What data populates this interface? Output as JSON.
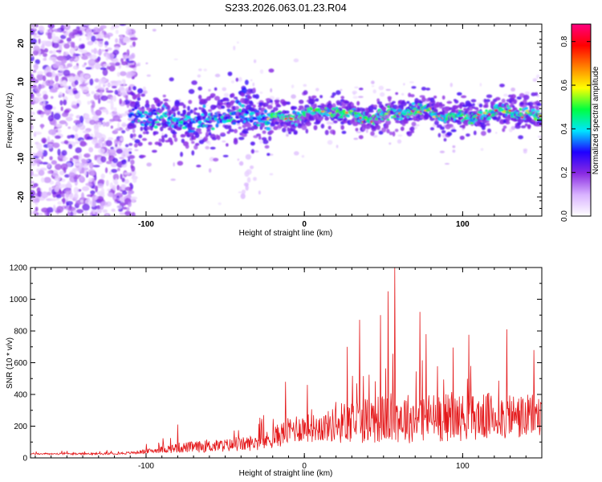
{
  "figure": {
    "title": "S233.2026.063.01.23.R04"
  },
  "chart_data": [
    {
      "type": "heatmap",
      "title": "S233.2026.063.01.23.R04",
      "xlabel": "Height of straight line (km)",
      "ylabel": "Frequency (Hz)",
      "xlim": [
        -173,
        150
      ],
      "ylim": [
        -25,
        25
      ],
      "x_ticks": [
        -100,
        0,
        100
      ],
      "x_tick_labels": [
        "-100",
        "0",
        "100"
      ],
      "y_ticks": [
        -20,
        -10,
        0,
        10,
        20
      ],
      "y_tick_labels": [
        "-20",
        "-10",
        "0",
        "10",
        "20"
      ],
      "colorbar": {
        "label": "Normalized spectral amplitude",
        "range": [
          0.0,
          0.88
        ],
        "ticks": [
          0.0,
          0.2,
          0.4,
          0.6,
          0.8
        ],
        "tick_labels": [
          "0.0",
          "0.2",
          "0.4",
          "0.6",
          "0.8"
        ],
        "colormap": [
          "#ffffff",
          "#d9b3ff",
          "#8a2be2",
          "#1f00ff",
          "#00e5ff",
          "#00ff40",
          "#ffff00",
          "#ff8000",
          "#ff0000",
          "#ff0080"
        ]
      },
      "ridge": {
        "description": "Dominant energy band near 0-3 Hz from about -110 km to 150 km",
        "x_start": -110,
        "x_end": 150,
        "center_freq_hz": 1.5,
        "noise_region_x_end": -110
      },
      "secondary_features": [
        {
          "x": -37,
          "freq_hz": 9.5,
          "note": "bright blob above ridge"
        },
        {
          "x": -35,
          "freq_hz": -20,
          "note": "faint streak below ridge"
        }
      ]
    },
    {
      "type": "line",
      "xlabel": "Height of straight line (km)",
      "ylabel": "SNR (10 * v/v)",
      "xlim": [
        -173,
        150
      ],
      "ylim": [
        0,
        1200
      ],
      "x_ticks": [
        -100,
        0,
        100
      ],
      "x_tick_labels": [
        "-100",
        "0",
        "100"
      ],
      "y_ticks": [
        0,
        200,
        400,
        600,
        800,
        1000,
        1200
      ],
      "y_tick_labels": [
        "0",
        "200",
        "400",
        "600",
        "800",
        "1000",
        "1200"
      ],
      "line_color": "#e41a1c",
      "envelope": {
        "x": [
          -173,
          -130,
          -110,
          -95,
          -80,
          -60,
          -40,
          -25,
          -15,
          -5,
          5,
          15,
          25,
          30,
          40,
          50,
          60,
          70,
          80,
          90,
          100,
          110,
          120,
          130,
          140,
          150
        ],
        "base": [
          25,
          25,
          30,
          45,
          60,
          70,
          80,
          100,
          140,
          180,
          180,
          190,
          210,
          220,
          230,
          230,
          240,
          230,
          240,
          240,
          240,
          240,
          250,
          250,
          240,
          250
        ],
        "amp": [
          10,
          10,
          15,
          30,
          60,
          70,
          80,
          100,
          140,
          170,
          160,
          180,
          250,
          260,
          280,
          280,
          300,
          280,
          290,
          280,
          270,
          260,
          280,
          280,
          260,
          270
        ]
      },
      "peaks": [
        {
          "x": -80,
          "y": 210
        },
        {
          "x": -12,
          "y": 480
        },
        {
          "x": 2,
          "y": 460
        },
        {
          "x": 27,
          "y": 700
        },
        {
          "x": 35,
          "y": 870
        },
        {
          "x": 48,
          "y": 900
        },
        {
          "x": 53,
          "y": 1050
        },
        {
          "x": 57,
          "y": 1200
        },
        {
          "x": 73,
          "y": 920
        },
        {
          "x": 77,
          "y": 780
        },
        {
          "x": 105,
          "y": 580
        },
        {
          "x": 128,
          "y": 810
        },
        {
          "x": 145,
          "y": 680
        }
      ]
    }
  ]
}
